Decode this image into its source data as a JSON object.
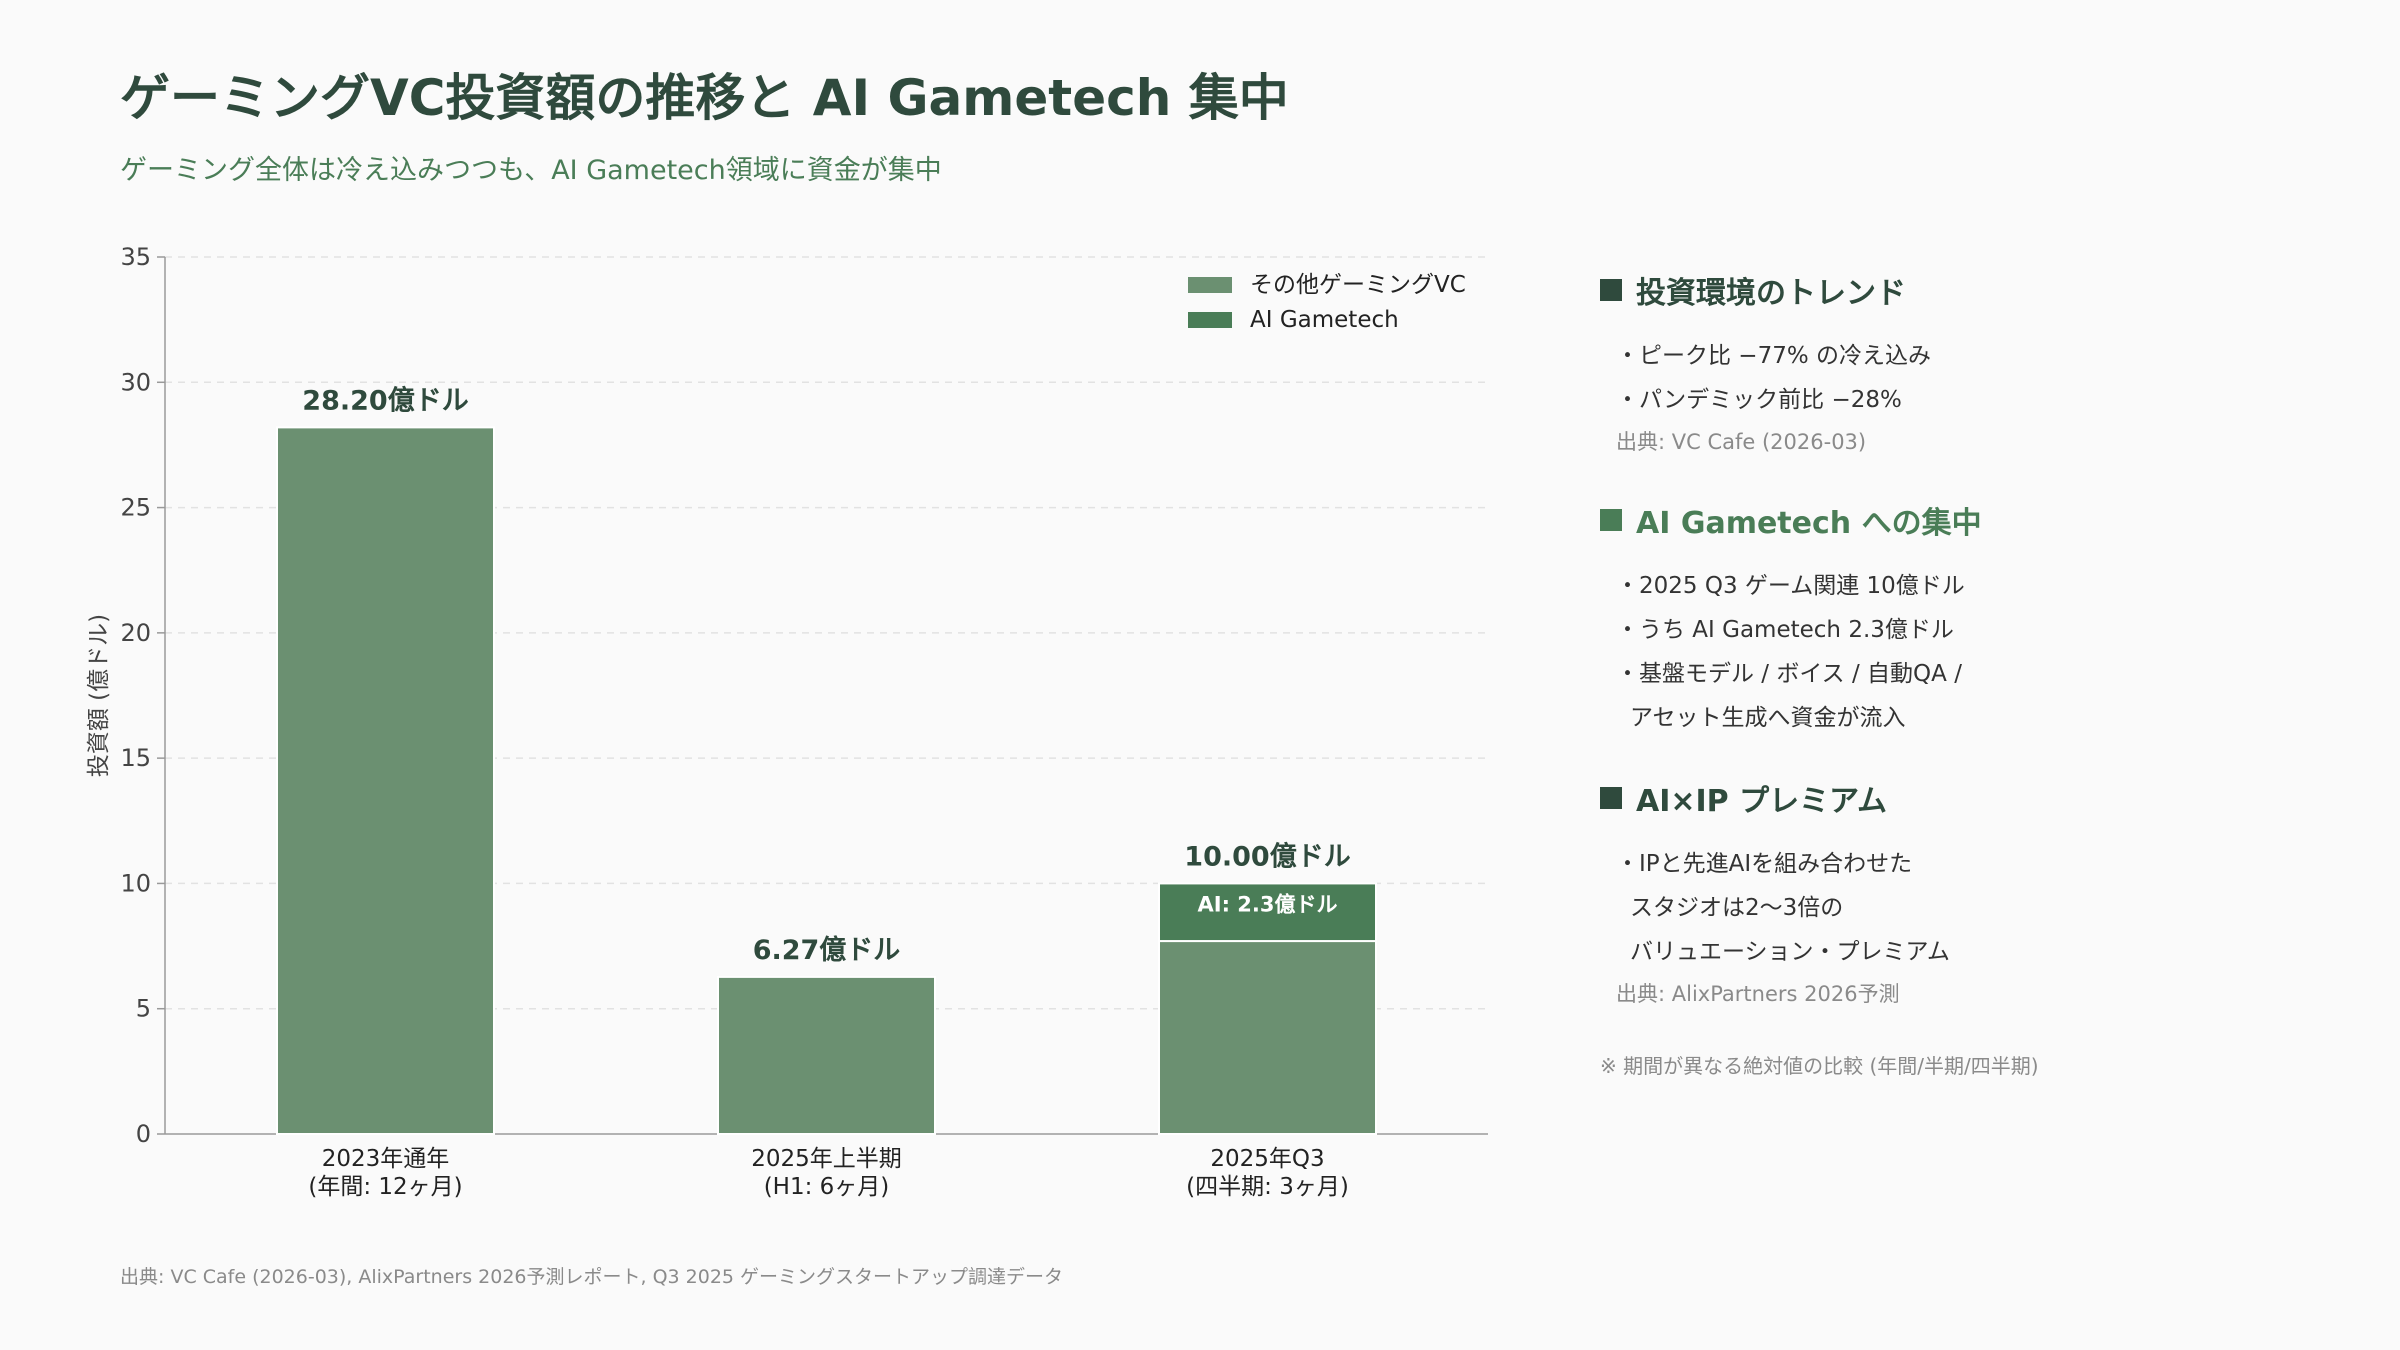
{
  "header": {
    "title": "ゲーミングVC投資額の推移と AI Gametech 集中",
    "subtitle": "ゲーミング全体は冷え込みつつも、AI Gametech領域に資金が集中"
  },
  "chart_data": {
    "type": "bar",
    "stacked": true,
    "categories": [
      [
        "2023年通年",
        "(年間: 12ヶ月)"
      ],
      [
        "2025年上半期",
        "(H1: 6ヶ月)"
      ],
      [
        "2025年Q3",
        "(四半期: 3ヶ月)"
      ]
    ],
    "series": [
      {
        "name": "その他ゲーミングVC",
        "values": [
          28.2,
          6.27,
          7.7
        ],
        "color": "#6b9071"
      },
      {
        "name": "AI Gametech",
        "values": [
          0,
          0,
          2.3
        ],
        "color": "#4a7d57"
      }
    ],
    "total_labels": [
      "28.20億ドル",
      "6.27億ドル",
      "10.00億ドル"
    ],
    "segment_labels": [
      {
        "category_index": 2,
        "series_index": 1,
        "text": "AI: 2.3億ドル"
      }
    ],
    "ylabel": "投資額 (億ドル)",
    "ylim": [
      0,
      35
    ],
    "yticks": [
      0,
      5,
      10,
      15,
      20,
      25,
      30,
      35
    ],
    "grid": true,
    "legend_position": "top-right"
  },
  "sidebar": {
    "sections": [
      {
        "heading": "投資環境のトレンド",
        "accent": false,
        "bullets": [
          "・ピーク比 −77% の冷え込み",
          "・パンデミック前比 −28%"
        ],
        "source": "出典: VC Cafe (2026-03)"
      },
      {
        "heading": "AI Gametech への集中",
        "accent": true,
        "bullets": [
          "・2025 Q3 ゲーム関連 10億ドル",
          "・うち AI Gametech 2.3億ドル",
          "・基盤モデル / ボイス / 自動QA /",
          "アセット生成へ資金が流入"
        ]
      },
      {
        "heading": "AI×IP プレミアム",
        "accent": false,
        "bullets": [
          "・IPと先進AIを組み合わせた",
          "スタジオは2〜3倍の",
          "バリュエーション・プレミアム"
        ],
        "source": "出典: AlixPartners 2026予測"
      }
    ],
    "note": "※ 期間が異なる絶対値の比較 (年間/半期/四半期)"
  },
  "footer": {
    "source": "出典: VC Cafe (2026-03), AlixPartners 2026予測レポート, Q3 2025 ゲーミングスタートアップ調達データ"
  }
}
